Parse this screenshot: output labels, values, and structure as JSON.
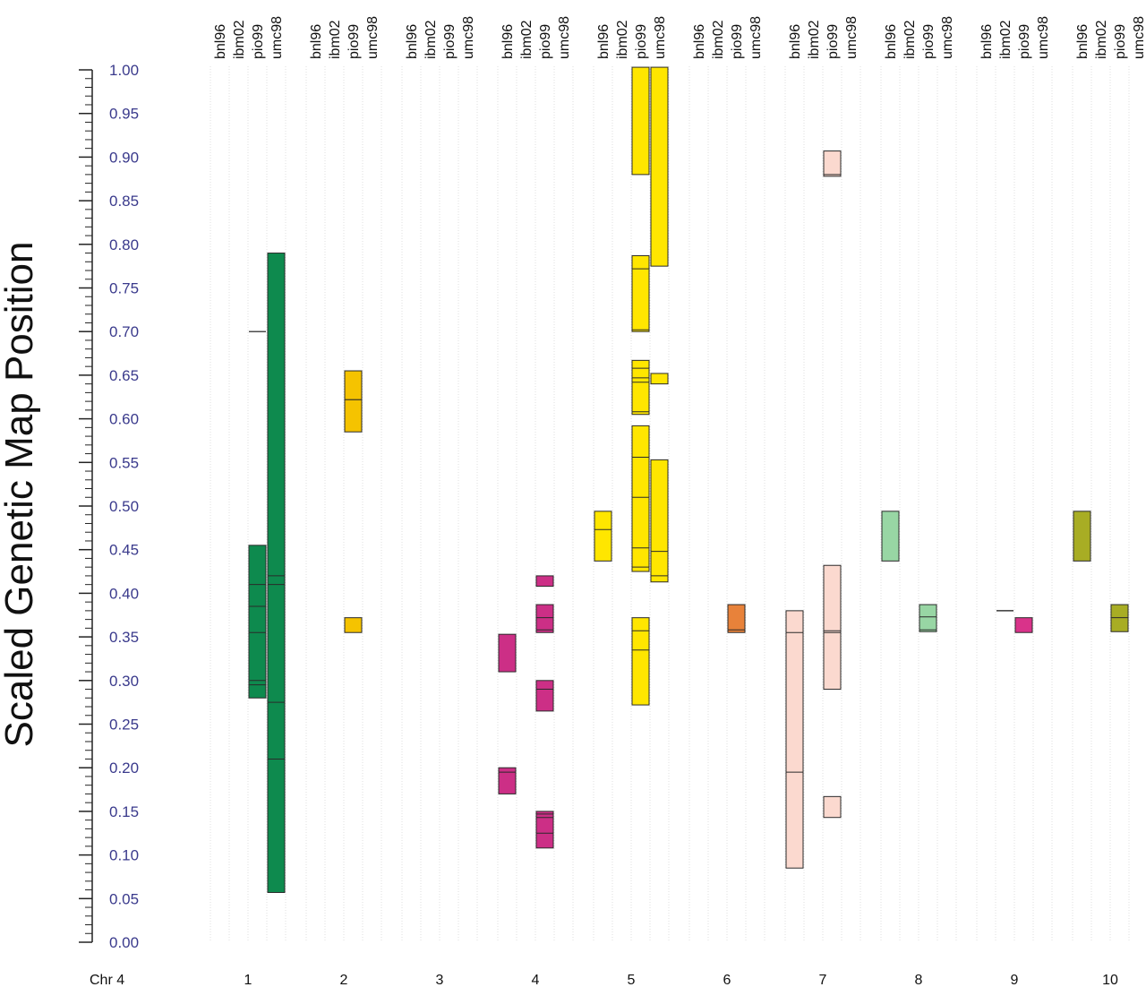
{
  "chart_data": {
    "type": "bar",
    "ylabel": "Scaled Genetic Map Position",
    "ylim": [
      0,
      1
    ],
    "yticks": [
      "0.00",
      "0.05",
      "0.10",
      "0.15",
      "0.20",
      "0.25",
      "0.30",
      "0.35",
      "0.40",
      "0.45",
      "0.50",
      "0.55",
      "0.60",
      "0.65",
      "0.70",
      "0.75",
      "0.80",
      "0.85",
      "0.90",
      "0.95",
      "1.00"
    ],
    "map_label": "Chr 4",
    "maps": [
      "bnl96",
      "ibm02",
      "pio99",
      "umc98"
    ],
    "groups": [
      "1",
      "2",
      "3",
      "4",
      "5",
      "6",
      "7",
      "8",
      "9",
      "10"
    ],
    "colors": {
      "1": "#0e8a4e",
      "2": "#f5c300",
      "4": "#cc2f86",
      "5": "#ffe600",
      "6": "#e8823a",
      "7": "#fbd9cf",
      "8": "#98d6a4",
      "9": "#d9338a",
      "10": "#a8ad24"
    },
    "segments": [
      {
        "group": "1",
        "map": "pio99",
        "from": 0.28,
        "to": 0.455,
        "lines": [
          0.295,
          0.3,
          0.355,
          0.385,
          0.41
        ]
      },
      {
        "group": "1",
        "map": "pio99",
        "from": 0.7,
        "to": 0.7,
        "lines": []
      },
      {
        "group": "1",
        "map": "umc98",
        "from": 0.057,
        "to": 0.79,
        "lines": [
          0.21,
          0.275,
          0.41,
          0.42
        ]
      },
      {
        "group": "2",
        "map": "pio99",
        "from": 0.585,
        "to": 0.622,
        "lines": []
      },
      {
        "group": "2",
        "map": "pio99",
        "from": 0.622,
        "to": 0.655,
        "lines": []
      },
      {
        "group": "2",
        "map": "pio99",
        "from": 0.355,
        "to": 0.372,
        "lines": []
      },
      {
        "group": "4",
        "map": "bnl96",
        "from": 0.31,
        "to": 0.353,
        "lines": []
      },
      {
        "group": "4",
        "map": "bnl96",
        "from": 0.17,
        "to": 0.2,
        "lines": [
          0.195
        ]
      },
      {
        "group": "4",
        "map": "pio99",
        "from": 0.408,
        "to": 0.42,
        "lines": []
      },
      {
        "group": "4",
        "map": "pio99",
        "from": 0.355,
        "to": 0.387,
        "lines": [
          0.358,
          0.372
        ]
      },
      {
        "group": "4",
        "map": "pio99",
        "from": 0.265,
        "to": 0.3,
        "lines": [
          0.29
        ]
      },
      {
        "group": "4",
        "map": "pio99",
        "from": 0.108,
        "to": 0.15,
        "lines": [
          0.125,
          0.143,
          0.147
        ]
      },
      {
        "group": "5",
        "map": "bnl96",
        "from": 0.437,
        "to": 0.494,
        "lines": [
          0.473
        ]
      },
      {
        "group": "5",
        "map": "pio99",
        "from": 0.88,
        "to": 1.003,
        "lines": []
      },
      {
        "group": "5",
        "map": "pio99",
        "from": 0.7,
        "to": 0.787,
        "lines": [
          0.702,
          0.772
        ]
      },
      {
        "group": "5",
        "map": "pio99",
        "from": 0.605,
        "to": 0.667,
        "lines": [
          0.608,
          0.642,
          0.647,
          0.658
        ]
      },
      {
        "group": "5",
        "map": "pio99",
        "from": 0.425,
        "to": 0.592,
        "lines": [
          0.43,
          0.452,
          0.51,
          0.556
        ]
      },
      {
        "group": "5",
        "map": "pio99",
        "from": 0.272,
        "to": 0.372,
        "lines": [
          0.335,
          0.357
        ]
      },
      {
        "group": "5",
        "map": "umc98",
        "from": 0.775,
        "to": 1.003,
        "lines": []
      },
      {
        "group": "5",
        "map": "umc98",
        "from": 0.64,
        "to": 0.652,
        "lines": []
      },
      {
        "group": "5",
        "map": "umc98",
        "from": 0.413,
        "to": 0.553,
        "lines": [
          0.42,
          0.448
        ]
      },
      {
        "group": "6",
        "map": "pio99",
        "from": 0.355,
        "to": 0.387,
        "lines": [
          0.358
        ]
      },
      {
        "group": "7",
        "map": "bnl96",
        "from": 0.085,
        "to": 0.38,
        "lines": [
          0.195,
          0.355
        ]
      },
      {
        "group": "7",
        "map": "pio99",
        "from": 0.878,
        "to": 0.907,
        "lines": [
          0.88
        ]
      },
      {
        "group": "7",
        "map": "pio99",
        "from": 0.29,
        "to": 0.432,
        "lines": [
          0.355,
          0.357
        ]
      },
      {
        "group": "7",
        "map": "pio99",
        "from": 0.143,
        "to": 0.167,
        "lines": []
      },
      {
        "group": "8",
        "map": "bnl96",
        "from": 0.437,
        "to": 0.494,
        "lines": []
      },
      {
        "group": "8",
        "map": "pio99",
        "from": 0.356,
        "to": 0.387,
        "lines": [
          0.358,
          0.373
        ]
      },
      {
        "group": "9",
        "map": "ibm02",
        "from": 0.38,
        "to": 0.38,
        "lines": []
      },
      {
        "group": "9",
        "map": "pio99",
        "from": 0.355,
        "to": 0.372,
        "lines": []
      },
      {
        "group": "10",
        "map": "bnl96",
        "from": 0.437,
        "to": 0.494,
        "lines": []
      },
      {
        "group": "10",
        "map": "pio99",
        "from": 0.356,
        "to": 0.387,
        "lines": [
          0.372
        ]
      }
    ]
  }
}
